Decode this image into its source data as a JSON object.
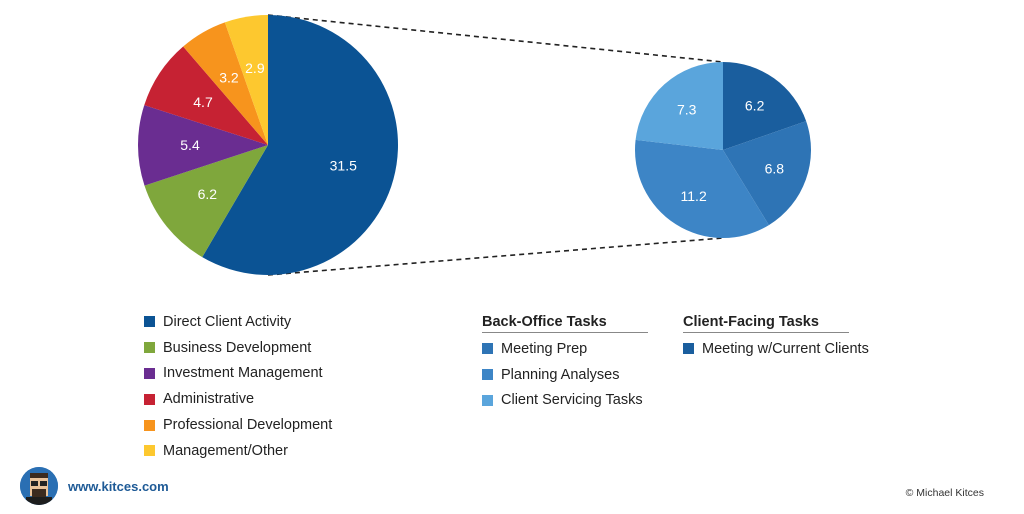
{
  "chart_data": [
    {
      "type": "pie",
      "slices": [
        {
          "label": "Direct Client Activity",
          "value": 31.5,
          "color": "#0b5394"
        },
        {
          "label": "Business Development",
          "value": 6.2,
          "color": "#7fa73c"
        },
        {
          "label": "Investment Management",
          "value": 5.4,
          "color": "#6a2d91"
        },
        {
          "label": "Administrative",
          "value": 4.7,
          "color": "#c62233"
        },
        {
          "label": "Professional Development",
          "value": 3.2,
          "color": "#f7941d"
        },
        {
          "label": "Management/Other",
          "value": 2.9,
          "color": "#fdc82f"
        }
      ],
      "legend_placement": "bottom-left"
    },
    {
      "type": "pie",
      "slices": [
        {
          "label": "Meeting w/Current Clients",
          "value": 6.2,
          "color": "#1a5e9e"
        },
        {
          "label": "Meeting Prep",
          "value": 6.8,
          "color": "#2e74b5"
        },
        {
          "label": "Planning Analyses",
          "value": 11.2,
          "color": "#3d85c6"
        },
        {
          "label": "Client Servicing Tasks",
          "value": 7.3,
          "color": "#5aa5dc"
        }
      ],
      "legend_groups": [
        {
          "heading": "Back-Office Tasks",
          "items": [
            "Meeting Prep",
            "Planning Analyses",
            "Client Servicing Tasks"
          ]
        },
        {
          "heading": "Client-Facing Tasks",
          "items": [
            "Meeting w/Current Clients"
          ]
        }
      ]
    }
  ],
  "legend_main": [
    {
      "label": "Direct Client Activity",
      "color": "#0b5394"
    },
    {
      "label": "Business Development",
      "color": "#7fa73c"
    },
    {
      "label": "Investment Management",
      "color": "#6a2d91"
    },
    {
      "label": "Administrative",
      "color": "#c62233"
    },
    {
      "label": "Professional Development",
      "color": "#f7941d"
    },
    {
      "label": "Management/Other",
      "color": "#fdc82f"
    }
  ],
  "legend_back": {
    "heading": "Back-Office Tasks",
    "items": [
      {
        "label": "Meeting Prep",
        "color": "#2e74b5"
      },
      {
        "label": "Planning Analyses",
        "color": "#3d85c6"
      },
      {
        "label": "Client Servicing Tasks",
        "color": "#5aa5dc"
      }
    ]
  },
  "legend_client": {
    "heading": "Client-Facing Tasks",
    "items": [
      {
        "label": "Meeting w/Current Clients",
        "color": "#1a5e9e"
      }
    ]
  },
  "brand": {
    "site": "www.kitces.com",
    "copyright": "© Michael Kitces"
  }
}
